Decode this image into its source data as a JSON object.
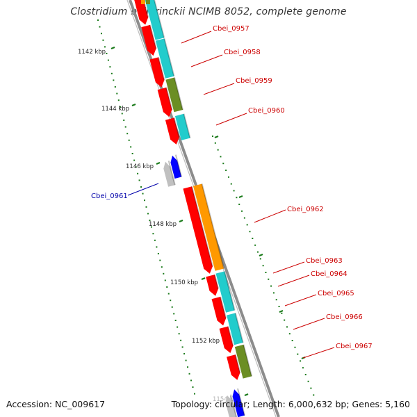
{
  "title": "Clostridium beijerinckii NCIMB 8052, complete genome",
  "footer": {
    "accession": "Accession: NC_009617",
    "summary": "Topology: circular; Length: 6,000,632 bp; Genes: 5,160"
  },
  "colors": {
    "backbone": "#8c8c8c",
    "gene_red": "#ff0000",
    "cds_cyan": "#22cccc",
    "cds_orange": "#ff9900",
    "cds_olive": "#6b8e23",
    "gene_blue": "#0000ff",
    "cds_gray": "#c0c0c0",
    "tick_green": "#1a7a1a",
    "label_red": "#cc0000",
    "label_blue": "#0000aa"
  },
  "ticks": [
    "1142 kbp",
    "1144 kbp",
    "1146 kbp",
    "1148 kbp",
    "1150 kbp",
    "1152 kbp",
    "1154 kbp"
  ],
  "genes": [
    {
      "name": "Cbei_0957",
      "strand": "forward",
      "cds_color": "cyan"
    },
    {
      "name": "Cbei_0958",
      "strand": "forward",
      "cds_color": "cyan"
    },
    {
      "name": "Cbei_0959",
      "strand": "forward",
      "cds_color": "olive"
    },
    {
      "name": "Cbei_0960",
      "strand": "forward",
      "cds_color": "cyan"
    },
    {
      "name": "Cbei_0961",
      "strand": "reverse",
      "cds_color": "gray"
    },
    {
      "name": "Cbei_0962",
      "strand": "forward",
      "cds_color": "orange"
    },
    {
      "name": "Cbei_0963",
      "strand": "forward",
      "cds_color": "cyan"
    },
    {
      "name": "Cbei_0964",
      "strand": "forward",
      "cds_color": "cyan"
    },
    {
      "name": "Cbei_0965",
      "strand": "forward",
      "cds_color": "cyan"
    },
    {
      "name": "Cbei_0966",
      "strand": "forward",
      "cds_color": "cyan"
    },
    {
      "name": "Cbei_0967",
      "strand": "forward",
      "cds_color": "olive"
    }
  ]
}
